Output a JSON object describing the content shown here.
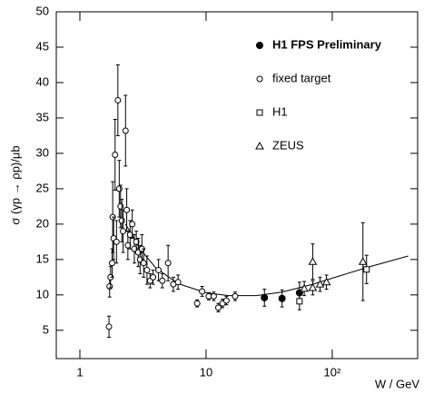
{
  "chart_data": {
    "type": "scatter",
    "y_label": "σ (γp → ρp)/μb",
    "x_label": "W / GeV",
    "xscale": "log",
    "xlim": [
      0.65,
      475
    ],
    "ylim": [
      1,
      50
    ],
    "xticks": [
      1,
      10,
      {
        "value": 100,
        "label": "10²"
      }
    ],
    "yticks": [
      5,
      10,
      15,
      20,
      25,
      30,
      35,
      40,
      45,
      50
    ],
    "series": [
      {
        "name": "H1 FPS Preliminary",
        "marker": "filled-circle",
        "color": "#000000",
        "x": [
          29,
          40,
          55
        ],
        "values": [
          9.6,
          9.5,
          10.3
        ],
        "errors": [
          1.2,
          1.2,
          1.5
        ]
      },
      {
        "name": "fixed target",
        "marker": "open-circle",
        "color": "#000000",
        "x": [
          1.7,
          1.72,
          1.75,
          1.8,
          1.82,
          1.85,
          1.9,
          1.95,
          2.0,
          2.05,
          2.1,
          2.15,
          2.2,
          2.3,
          2.35,
          2.4,
          2.5,
          2.6,
          2.7,
          2.8,
          2.9,
          3.0,
          3.1,
          3.2,
          3.4,
          3.6,
          3.8,
          4.2,
          4.5,
          5,
          5.5,
          6,
          8.5,
          9.3,
          10.5,
          11.5,
          12.5,
          13.5,
          14.5,
          17
        ],
        "values": [
          5.5,
          11.2,
          12.5,
          14.5,
          21,
          18,
          29.8,
          17.5,
          37.5,
          25,
          22.5,
          20.5,
          19,
          33.2,
          22,
          17,
          18.5,
          20,
          16.5,
          17.5,
          16,
          15,
          16.5,
          14.5,
          13.5,
          12,
          12.5,
          13.5,
          12,
          14.5,
          11.5,
          11.8,
          8.8,
          10.5,
          9.8,
          9.8,
          8.2,
          8.8,
          9.2,
          9.8
        ],
        "errors": [
          1.5,
          1.5,
          1.5,
          2,
          5,
          3,
          5,
          3,
          5,
          4,
          3,
          3,
          3,
          5,
          3,
          2,
          2,
          2,
          2,
          1.5,
          2,
          2,
          2,
          2,
          2,
          1,
          1,
          1.5,
          1,
          2.5,
          1,
          1,
          0.5,
          0.7,
          0.5,
          0.6,
          0.6,
          0.6,
          0.6,
          0.6
        ]
      },
      {
        "name": "H1",
        "marker": "open-square",
        "color": "#000000",
        "x": [
          55,
          187
        ],
        "values": [
          9.1,
          13.6
        ],
        "errors": [
          1.2,
          2
        ]
      },
      {
        "name": "ZEUS",
        "marker": "open-triangle",
        "color": "#000000",
        "x": [
          60,
          70,
          80,
          90,
          70,
          175
        ],
        "values": [
          10.9,
          11,
          11.5,
          11.8,
          14.7,
          14.7
        ],
        "errors": [
          1,
          1,
          1,
          1,
          2.5,
          5.5
        ]
      }
    ],
    "curve": {
      "x": [
        2.3,
        3,
        4,
        6,
        10,
        15,
        25,
        40,
        70,
        120,
        200,
        400
      ],
      "values": [
        20,
        16.5,
        13.8,
        11.6,
        10.3,
        9.9,
        9.9,
        10.4,
        11.5,
        12.8,
        14,
        15.5
      ]
    }
  }
}
